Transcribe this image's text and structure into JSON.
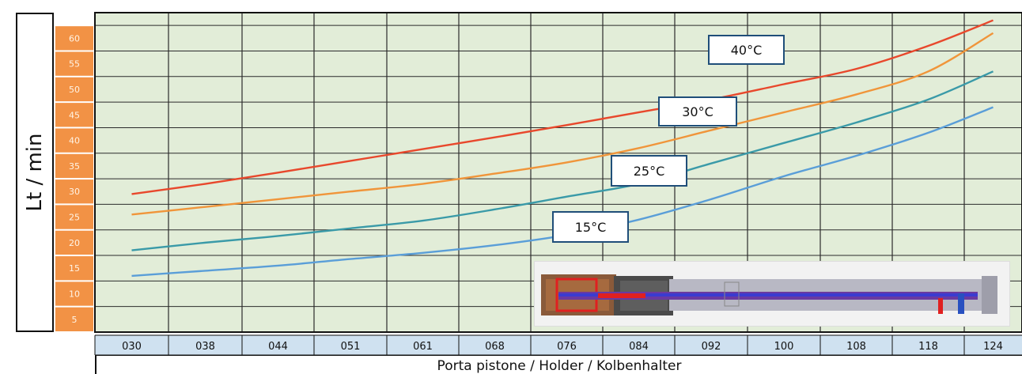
{
  "chart_data": {
    "type": "line",
    "ylabel": "Lt / min",
    "xlabel": "Porta pistone / Holder / Kolbenhalter",
    "categories": [
      "030",
      "038",
      "044",
      "051",
      "061",
      "068",
      "076",
      "084",
      "092",
      "100",
      "108",
      "118",
      "124"
    ],
    "y_ticks": [
      5,
      10,
      15,
      20,
      25,
      30,
      35,
      40,
      45,
      50,
      55,
      60
    ],
    "ylim": [
      2.5,
      65
    ],
    "grid": true,
    "series": [
      {
        "name": "40°C",
        "color": "#e8482c",
        "values": [
          29.5,
          31.5,
          33.7,
          36,
          38.3,
          40.6,
          43,
          45.5,
          48,
          51,
          54,
          58.5,
          63.5
        ]
      },
      {
        "name": "30°C",
        "color": "#f0953a",
        "values": [
          25.5,
          27,
          28.5,
          30,
          31.5,
          33.5,
          35.7,
          38.5,
          42,
          45.5,
          49,
          53.5,
          61
        ]
      },
      {
        "name": "25°C",
        "color": "#3a9aa8",
        "values": [
          18.5,
          20,
          21.3,
          22.8,
          24.3,
          26.5,
          29,
          31.5,
          35.5,
          39.5,
          43.5,
          48,
          53.5
        ]
      },
      {
        "name": "15°C",
        "color": "#5a9ed8",
        "values": [
          13.5,
          14.5,
          15.5,
          16.8,
          18,
          19.5,
          21.5,
          24.5,
          28.5,
          33,
          37,
          41.5,
          46.5
        ]
      }
    ]
  },
  "colors": {
    "plot_bg": "#e2edd8",
    "ytick_bg": "#f29245",
    "xtick_bg": "#cfe1f0",
    "grid": "#2b2b2b"
  }
}
